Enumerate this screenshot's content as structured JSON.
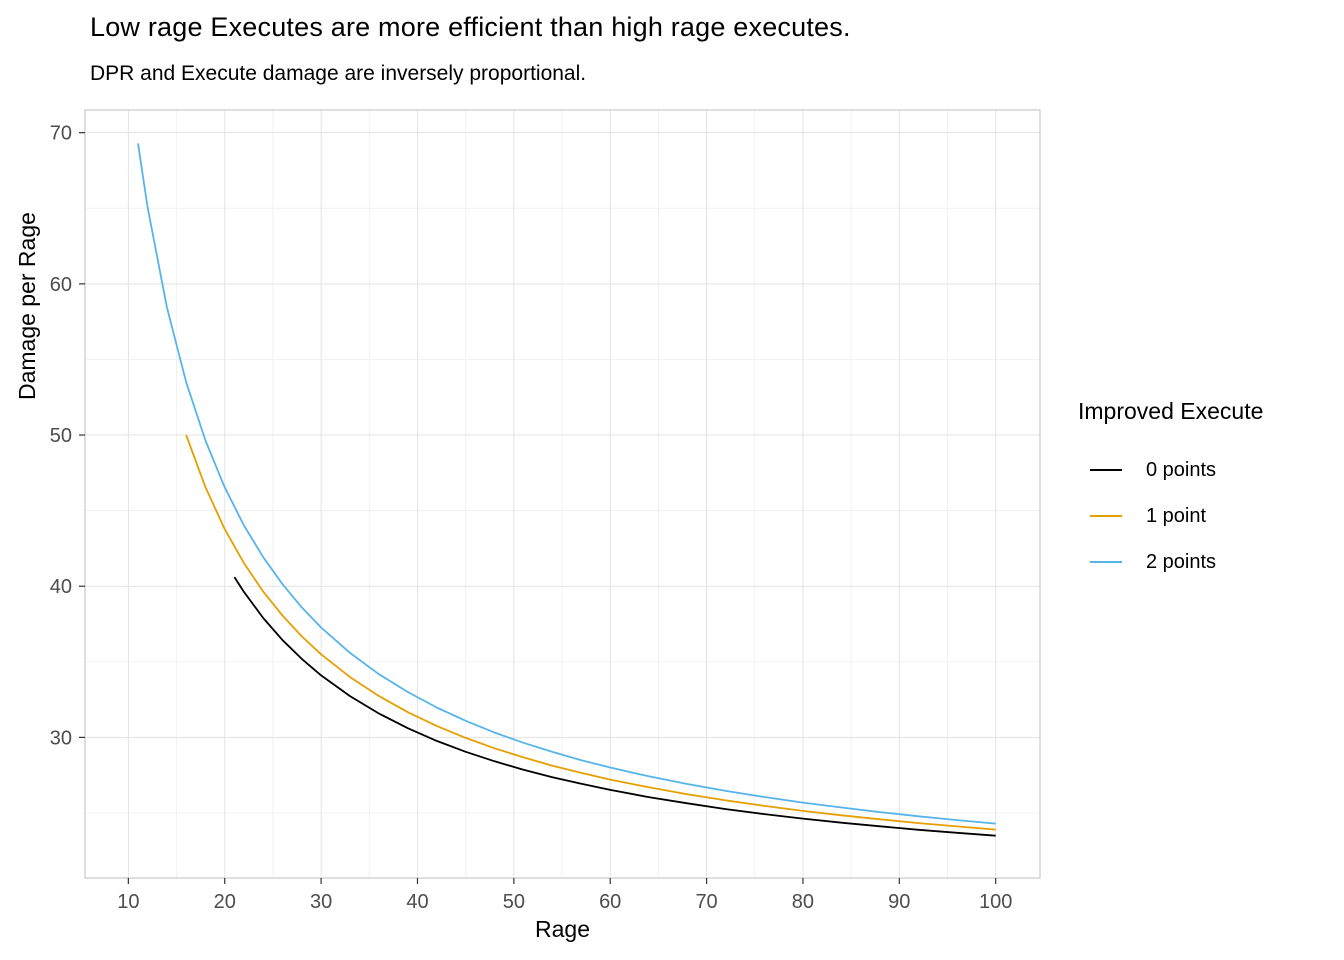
{
  "title": "Low rage Executes are more efficient than high rage executes.",
  "subtitle": "DPR and Execute damage are inversely proportional.",
  "legend": {
    "title": "Improved Execute",
    "items": [
      {
        "label": "0 points",
        "color": "#000000"
      },
      {
        "label": "1 point",
        "color": "#E69F00"
      },
      {
        "label": "2 points",
        "color": "#56B4E9"
      }
    ]
  },
  "axes": {
    "xlabel": "Rage",
    "ylabel": "Damage per Rage"
  },
  "colors": {
    "grid_major": "#E3E3E3",
    "grid_minor": "#F1F1F1",
    "panel_border": "#C9C9C9",
    "tick_mark": "#333333",
    "tick_label": "#4D4D4D"
  },
  "chart_data": {
    "type": "line",
    "title": "Low rage Executes are more efficient than high rage executes.",
    "subtitle": "DPR and Execute damage are inversely proportional.",
    "xlabel": "Rage",
    "ylabel": "Damage per Rage",
    "xlim": [
      5.5,
      104.6
    ],
    "ylim": [
      20.7,
      71.5
    ],
    "x_ticks": [
      10,
      20,
      30,
      40,
      50,
      60,
      70,
      80,
      90,
      100
    ],
    "y_ticks": [
      30,
      40,
      50,
      60,
      70
    ],
    "x_minor": [
      15,
      25,
      35,
      45,
      55,
      65,
      75,
      85,
      95
    ],
    "y_minor": [
      25,
      35,
      45,
      55,
      65
    ],
    "grid": true,
    "legend_position": "right",
    "legend_title": "Improved Execute",
    "series": [
      {
        "name": "0 points",
        "color": "#000000",
        "x": [
          21,
          22,
          24,
          26,
          28,
          30,
          33,
          36,
          39,
          42,
          45,
          48,
          51,
          54,
          57,
          60,
          64,
          68,
          72,
          76,
          80,
          84,
          88,
          92,
          96,
          100
        ],
        "y": [
          40.6,
          39.62,
          37.89,
          36.43,
          35.19,
          34.1,
          32.73,
          31.58,
          30.61,
          29.77,
          29.05,
          28.42,
          27.86,
          27.37,
          26.93,
          26.53,
          26.05,
          25.64,
          25.26,
          24.93,
          24.63,
          24.36,
          24.12,
          23.89,
          23.69,
          23.5
        ]
      },
      {
        "name": "1 point",
        "color": "#E69F00",
        "x": [
          16,
          18,
          20,
          22,
          24,
          26,
          28,
          30,
          33,
          36,
          39,
          42,
          45,
          48,
          51,
          54,
          57,
          60,
          64,
          68,
          72,
          76,
          80,
          84,
          88,
          92,
          96,
          100
        ],
        "y": [
          49.99,
          46.54,
          43.78,
          41.52,
          39.64,
          38.05,
          36.68,
          35.5,
          33.99,
          32.74,
          31.67,
          30.76,
          29.97,
          29.28,
          28.68,
          28.13,
          27.65,
          27.21,
          26.7,
          26.24,
          25.83,
          25.47,
          25.14,
          24.85,
          24.58,
          24.33,
          24.11,
          23.9
        ]
      },
      {
        "name": "2 points",
        "color": "#56B4E9",
        "x": [
          11,
          12,
          14,
          16,
          18,
          20,
          22,
          24,
          26,
          28,
          30,
          33,
          36,
          39,
          42,
          45,
          48,
          51,
          54,
          57,
          60,
          64,
          68,
          72,
          76,
          80,
          84,
          88,
          92,
          96,
          100
        ],
        "y": [
          69.29,
          65.07,
          58.45,
          53.49,
          49.63,
          46.54,
          44.01,
          41.91,
          40.13,
          38.6,
          37.27,
          35.59,
          34.18,
          33.0,
          31.98,
          31.1,
          30.32,
          29.64,
          29.04,
          28.49,
          28.01,
          27.43,
          26.92,
          26.46,
          26.06,
          25.69,
          25.36,
          25.06,
          24.78,
          24.53,
          24.3
        ]
      }
    ]
  }
}
